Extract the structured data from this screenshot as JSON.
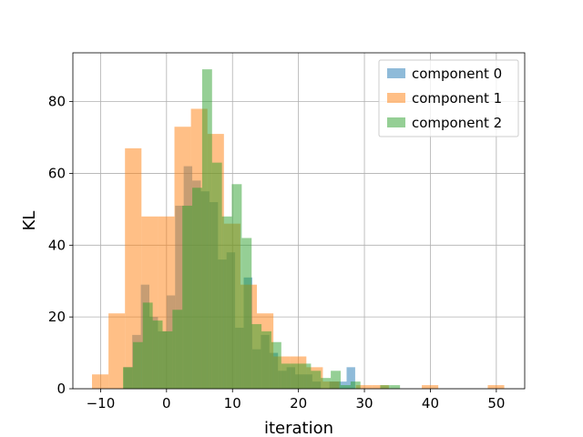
{
  "chart_data": {
    "type": "bar",
    "subtype": "overlapping-histogram",
    "title": "",
    "xlabel": "iteration",
    "ylabel": "KL",
    "xlim": [
      -14.2,
      54.3
    ],
    "ylim": [
      0,
      93.6
    ],
    "xticks": [
      -10,
      0,
      10,
      20,
      30,
      40,
      50
    ],
    "yticks": [
      0,
      20,
      40,
      60,
      80
    ],
    "grid": true,
    "legend_position": "top-right",
    "series": [
      {
        "name": "component 0",
        "color": "#1f77b4",
        "opacity": 0.5,
        "bin_edges": [
          -6.5,
          -5.2,
          -3.9,
          -2.6,
          -1.3,
          0.0,
          1.3,
          2.6,
          3.9,
          5.2,
          6.5,
          7.8,
          9.1,
          10.4,
          11.7,
          13.0,
          14.3,
          15.6,
          16.9,
          18.2,
          19.5,
          20.8,
          22.1,
          23.4,
          24.7,
          26.0,
          27.3,
          28.6
        ],
        "counts": [
          6,
          15,
          29,
          20,
          16,
          26,
          51,
          62,
          58,
          55,
          52,
          36,
          38,
          17,
          31,
          11,
          15,
          10,
          5,
          6,
          4,
          4,
          2,
          0,
          2,
          2,
          6
        ]
      },
      {
        "name": "component 1",
        "color": "#ff7f0e",
        "opacity": 0.5,
        "bin_edges": [
          -11.3,
          -8.8,
          -6.3,
          -3.8,
          -1.3,
          1.2,
          3.7,
          6.2,
          8.7,
          11.2,
          13.7,
          16.2,
          18.7,
          21.2,
          23.7,
          26.2,
          28.7,
          31.2,
          33.7,
          36.2,
          38.7,
          41.2,
          43.7,
          46.2,
          48.7,
          51.2
        ],
        "counts": [
          4,
          21,
          67,
          48,
          48,
          73,
          78,
          71,
          46,
          29,
          21,
          9,
          9,
          6,
          2,
          0,
          1,
          1,
          0,
          0,
          1,
          0,
          0,
          0,
          1
        ]
      },
      {
        "name": "component 2",
        "color": "#2ca02c",
        "opacity": 0.5,
        "bin_edges": [
          -6.6,
          -5.1,
          -3.6,
          -2.1,
          -0.6,
          0.9,
          2.4,
          3.9,
          5.4,
          6.9,
          8.4,
          9.9,
          11.4,
          12.9,
          14.4,
          15.9,
          17.4,
          18.9,
          20.4,
          21.9,
          23.4,
          24.9,
          26.4,
          27.9,
          29.4,
          30.9,
          32.4,
          33.9,
          35.4
        ],
        "counts": [
          6,
          13,
          24,
          19,
          16,
          22,
          51,
          56,
          89,
          63,
          48,
          57,
          42,
          18,
          16,
          13,
          7,
          7,
          7,
          5,
          3,
          5,
          1,
          2,
          0,
          0,
          1,
          1
        ]
      }
    ]
  }
}
